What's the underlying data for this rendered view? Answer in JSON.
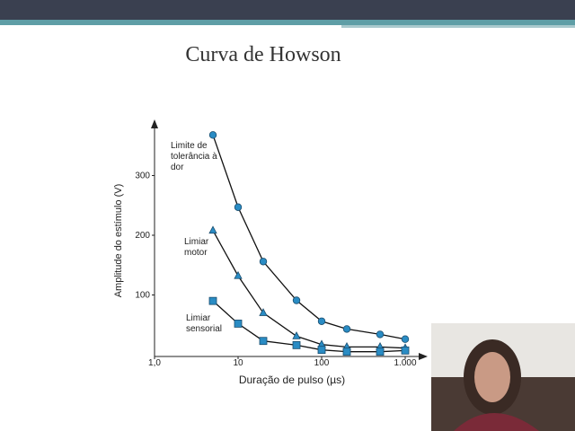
{
  "chart_data": {
    "type": "line",
    "title": "Curva de Howson",
    "x_label": "Duração de pulso (µs)",
    "y_label": "Amplitude do estímulo (V)",
    "x": [
      5,
      10,
      20,
      50,
      100,
      200,
      500,
      1000
    ],
    "series": [
      {
        "name": "Limite de tolerância à dor",
        "color": "#2a8cc4",
        "marker": "circle",
        "values": [
          368,
          247,
          156,
          91,
          56,
          43,
          34,
          26
        ]
      },
      {
        "name": "Limiar motor",
        "color": "#2a8cc4",
        "marker": "triangle",
        "values": [
          208,
          132,
          70,
          31,
          17,
          13,
          13,
          11
        ]
      },
      {
        "name": "Limiar sensorial",
        "color": "#2a8cc4",
        "marker": "square",
        "values": [
          90,
          52,
          23,
          16,
          8,
          5,
          5,
          7
        ]
      }
    ],
    "xscale": "log",
    "xlim": [
      1,
      1600
    ],
    "xticks": [
      {
        "value": 1,
        "label": "1,0"
      },
      10,
      100,
      {
        "value": 1000,
        "label": "1.000"
      }
    ],
    "ylim": [
      0,
      385
    ],
    "yticks": [
      100,
      200,
      300
    ]
  }
}
